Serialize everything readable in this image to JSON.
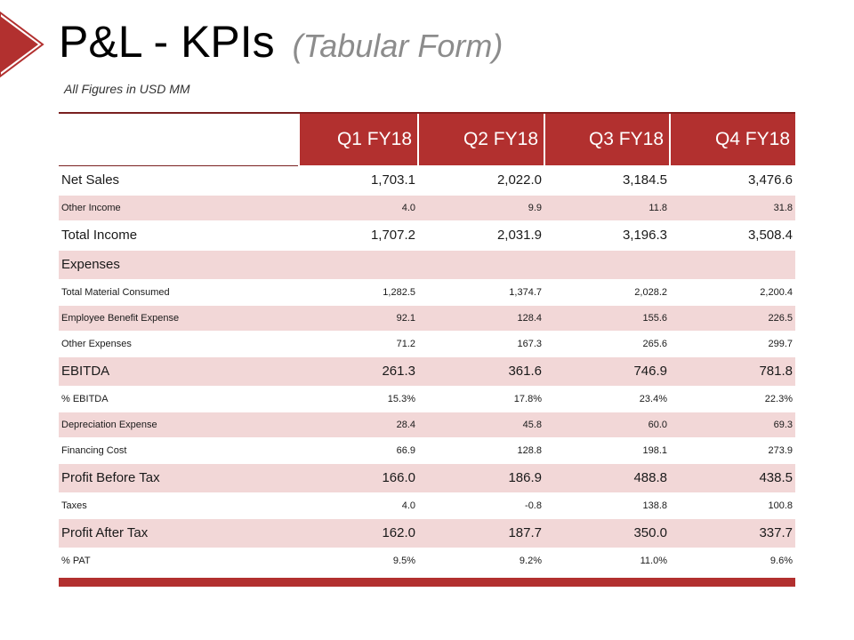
{
  "header": {
    "title": "P&L - KPIs",
    "subtitle": "(Tabular Form)",
    "units_note": "All Figures in USD MM"
  },
  "colors": {
    "accent": "#b2302f",
    "row_shade": "#f2d7d7"
  },
  "table": {
    "columns": [
      "Q1 FY18",
      "Q2 FY18",
      "Q3 FY18",
      "Q4 FY18"
    ],
    "rows": [
      {
        "label": "Net Sales",
        "values": [
          "1,703.1",
          "2,022.0",
          "3,184.5",
          "3,476.6"
        ],
        "major": true,
        "shaded": false
      },
      {
        "label": "Other Income",
        "values": [
          "4.0",
          "9.9",
          "11.8",
          "31.8"
        ],
        "major": false,
        "shaded": true
      },
      {
        "label": "Total Income",
        "values": [
          "1,707.2",
          "2,031.9",
          "3,196.3",
          "3,508.4"
        ],
        "major": true,
        "shaded": false
      },
      {
        "label": "Expenses",
        "values": [
          "",
          "",
          "",
          ""
        ],
        "major": true,
        "shaded": true
      },
      {
        "label": "Total Material Consumed",
        "values": [
          "1,282.5",
          "1,374.7",
          "2,028.2",
          "2,200.4"
        ],
        "major": false,
        "shaded": false
      },
      {
        "label": "Employee Benefit Expense",
        "values": [
          "92.1",
          "128.4",
          "155.6",
          "226.5"
        ],
        "major": false,
        "shaded": true
      },
      {
        "label": "Other Expenses",
        "values": [
          "71.2",
          "167.3",
          "265.6",
          "299.7"
        ],
        "major": false,
        "shaded": false
      },
      {
        "label": "EBITDA",
        "values": [
          "261.3",
          "361.6",
          "746.9",
          "781.8"
        ],
        "major": true,
        "shaded": true
      },
      {
        "label": "% EBITDA",
        "values": [
          "15.3%",
          "17.8%",
          "23.4%",
          "22.3%"
        ],
        "major": false,
        "shaded": false
      },
      {
        "label": "Depreciation Expense",
        "values": [
          "28.4",
          "45.8",
          "60.0",
          "69.3"
        ],
        "major": false,
        "shaded": true
      },
      {
        "label": "Financing Cost",
        "values": [
          "66.9",
          "128.8",
          "198.1",
          "273.9"
        ],
        "major": false,
        "shaded": false
      },
      {
        "label": "Profit Before Tax",
        "values": [
          "166.0",
          "186.9",
          "488.8",
          "438.5"
        ],
        "major": true,
        "shaded": true
      },
      {
        "label": "Taxes",
        "values": [
          "4.0",
          "-0.8",
          "138.8",
          "100.8"
        ],
        "major": false,
        "shaded": false
      },
      {
        "label": "Profit After Tax",
        "values": [
          "162.0",
          "187.7",
          "350.0",
          "337.7"
        ],
        "major": true,
        "shaded": true
      },
      {
        "label": "% PAT",
        "values": [
          "9.5%",
          "9.2%",
          "11.0%",
          "9.6%"
        ],
        "major": false,
        "shaded": false
      }
    ]
  }
}
